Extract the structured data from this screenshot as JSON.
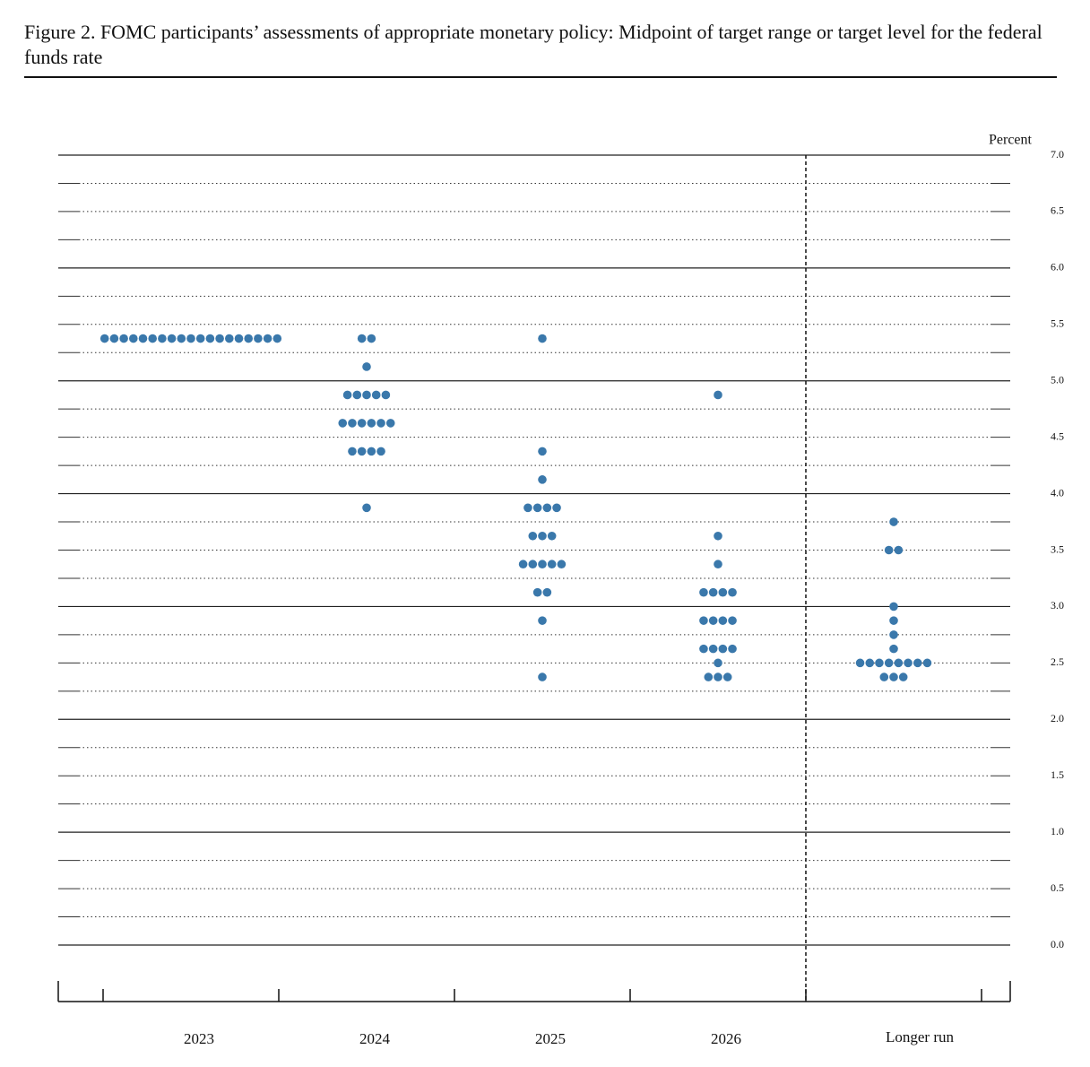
{
  "chart_data": {
    "type": "dot",
    "title": "Figure 2.  FOMC participants’ assessments of appropriate monetary policy: Midpoint of target range or target level for the federal funds rate",
    "y_label": "Percent",
    "color": "#3a78ab",
    "categories": [
      "2023",
      "2024",
      "2025",
      "2026",
      "Longer run"
    ],
    "values": [
      [
        5.375,
        5.375,
        5.375,
        5.375,
        5.375,
        5.375,
        5.375,
        5.375,
        5.375,
        5.375,
        5.375,
        5.375,
        5.375,
        5.375,
        5.375,
        5.375,
        5.375,
        5.375,
        5.375
      ],
      [
        5.375,
        5.375,
        5.125,
        4.875,
        4.875,
        4.875,
        4.875,
        4.875,
        4.625,
        4.625,
        4.625,
        4.625,
        4.625,
        4.625,
        4.375,
        4.375,
        4.375,
        4.375,
        3.875
      ],
      [
        5.375,
        4.375,
        4.125,
        3.875,
        3.875,
        3.875,
        3.875,
        3.625,
        3.625,
        3.625,
        3.375,
        3.375,
        3.375,
        3.375,
        3.375,
        3.125,
        3.125,
        2.875,
        2.375
      ],
      [
        4.875,
        3.625,
        3.375,
        3.125,
        3.125,
        3.125,
        3.125,
        2.875,
        2.875,
        2.875,
        2.875,
        2.625,
        2.625,
        2.625,
        2.625,
        2.5,
        2.375,
        2.375,
        2.375
      ],
      [
        3.75,
        3.5,
        3.5,
        3.0,
        2.875,
        2.75,
        2.625,
        2.5,
        2.5,
        2.5,
        2.5,
        2.5,
        2.5,
        2.5,
        2.5,
        2.375,
        2.375,
        2.375
      ]
    ],
    "ylim": [
      0,
      7
    ],
    "yticks": [
      {
        "value": 0,
        "label": "0.0"
      },
      {
        "value": 0.5,
        "label": "0.5"
      },
      {
        "value": 1,
        "label": "1.0"
      },
      {
        "value": 1.5,
        "label": "1.5"
      },
      {
        "value": 2,
        "label": "2.0"
      },
      {
        "value": 2.5,
        "label": "2.5"
      },
      {
        "value": 3,
        "label": "3.0"
      },
      {
        "value": 3.5,
        "label": "3.5"
      },
      {
        "value": 4,
        "label": "4.0"
      },
      {
        "value": 4.5,
        "label": "4.5"
      },
      {
        "value": 5,
        "label": "5.0"
      },
      {
        "value": 5.5,
        "label": "5.5"
      },
      {
        "value": 6,
        "label": "6.0"
      },
      {
        "value": 6.5,
        "label": "6.5"
      },
      {
        "value": 7,
        "label": "7.0"
      }
    ],
    "minor_yticks": [
      0.25,
      0.75,
      1.25,
      1.75,
      2.25,
      2.75,
      3.25,
      3.75,
      4.25,
      4.75,
      5.25,
      5.75,
      6.25,
      6.75
    ],
    "grid": true
  }
}
